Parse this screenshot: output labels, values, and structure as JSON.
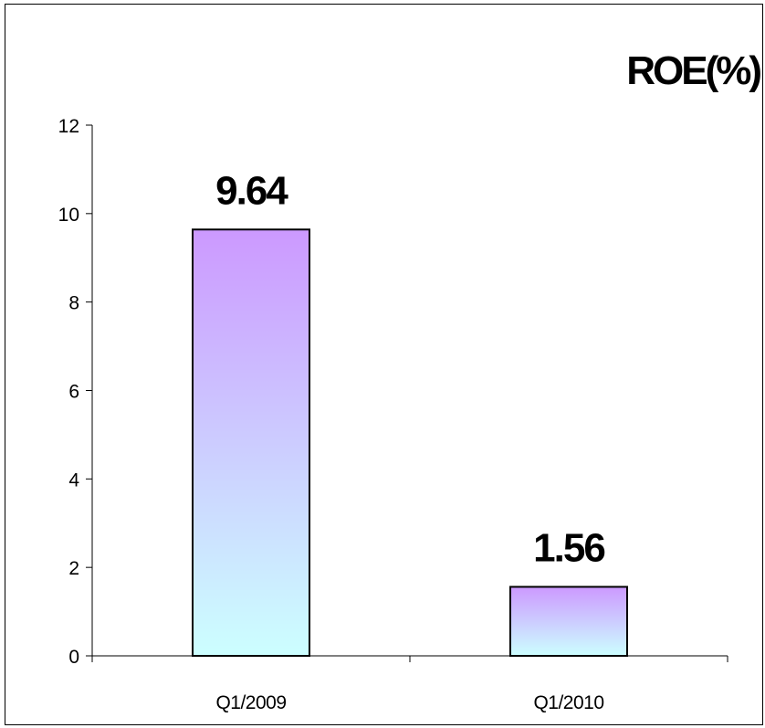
{
  "chart_data": {
    "type": "bar",
    "title": "ROE(%)",
    "categories": [
      "Q1/2009",
      "Q1/2010"
    ],
    "values": [
      9.64,
      1.56
    ],
    "data_labels": [
      "9.64",
      "1.56"
    ],
    "ylim": [
      0,
      12
    ],
    "yticks": [
      "0",
      "2",
      "4",
      "6",
      "8",
      "10",
      "12"
    ],
    "grid": false,
    "legend": "none",
    "colors": {
      "bar_top": "#cc99ff",
      "bar_bottom": "#ccffff",
      "bar_stroke": "#000000",
      "axis": "#000000"
    }
  }
}
